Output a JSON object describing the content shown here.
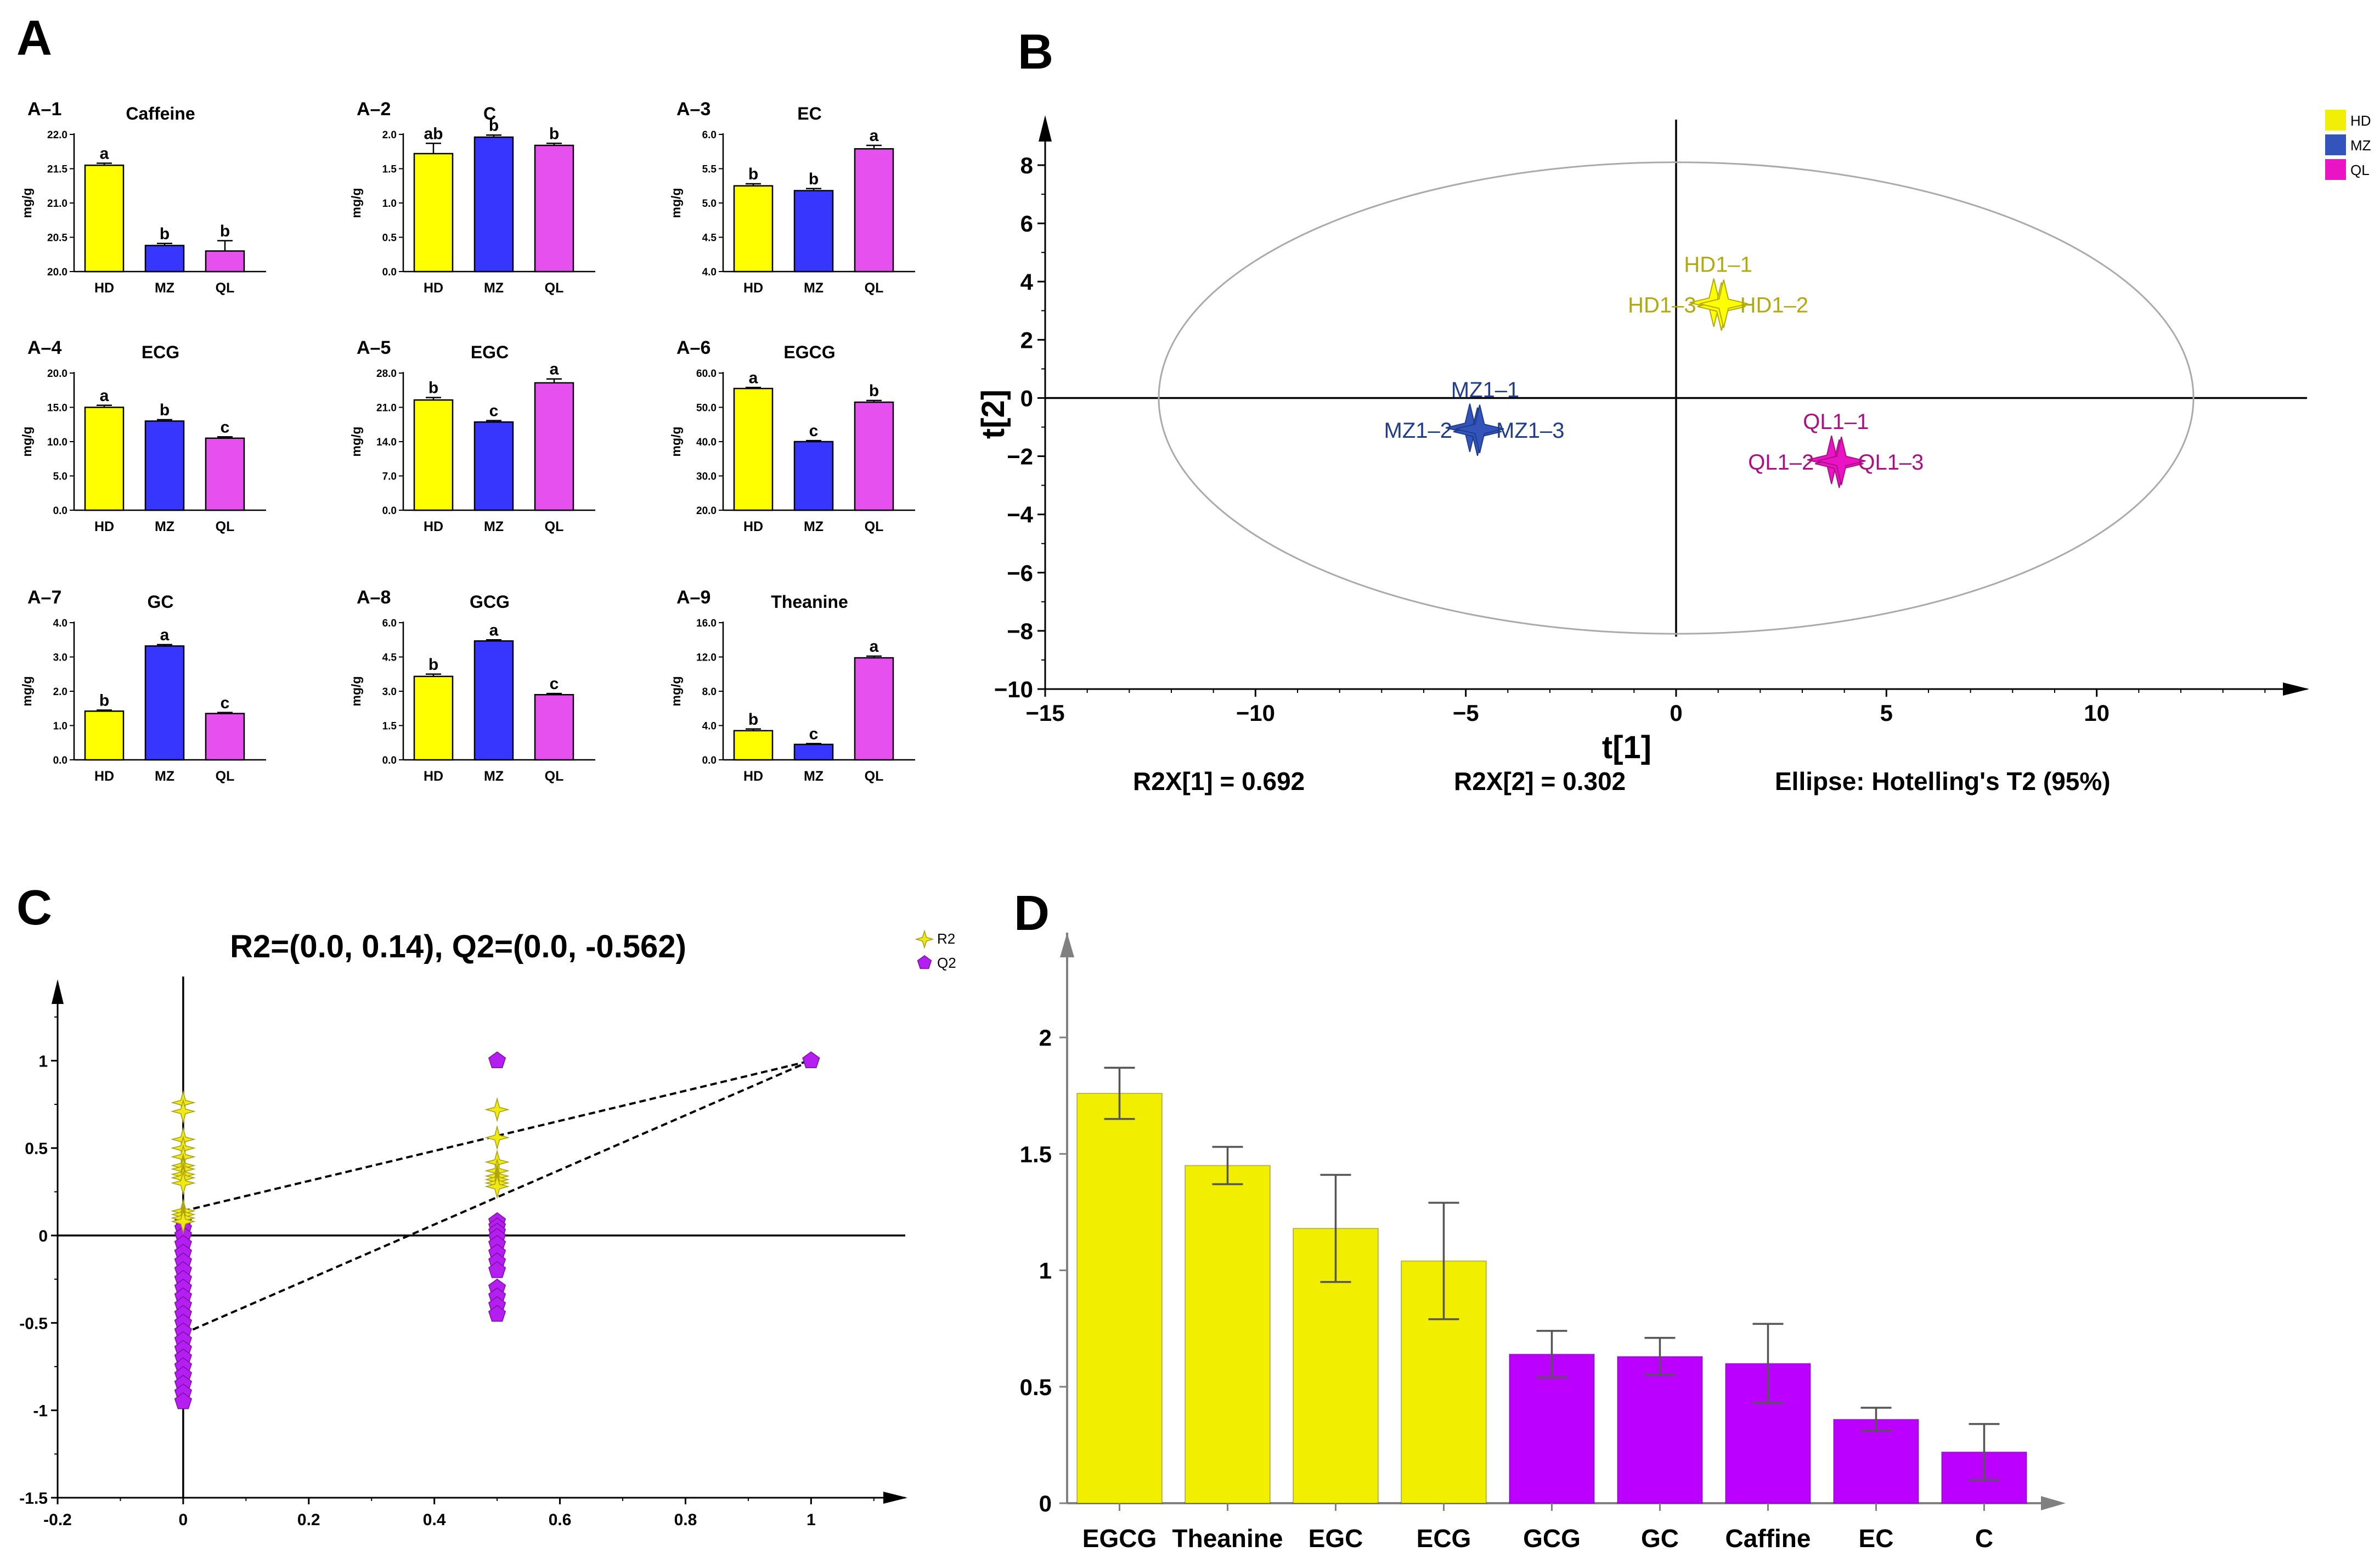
{
  "colors": {
    "HD": "#ffff00",
    "MZ": "#3636ff",
    "QL": "#e650ef",
    "hd_text": "#b3a90f",
    "mz_text": "#203d8a",
    "ql_text": "#a81083",
    "hd_legend": "#f0ef05",
    "mz_legend": "#3355bb",
    "ql_legend": "#ea14c4",
    "vip_yellow": "#f1ee00",
    "vip_purple": "#bb00ff",
    "r2_marker": "#f0ea14",
    "q2_marker": "#b51ef0"
  },
  "panel_labels": {
    "A": "A",
    "B": "B",
    "C": "C",
    "D": "D"
  },
  "chart_data": [
    {
      "id": "A-1",
      "type": "bar",
      "sublabel": "A–1",
      "title": "Caffeine",
      "ylabel": "mg/g",
      "categories": [
        "HD",
        "MZ",
        "QL"
      ],
      "values": [
        21.55,
        20.38,
        20.3
      ],
      "errors": [
        0.03,
        0.03,
        0.15
      ],
      "letters": [
        "a",
        "b",
        "b"
      ],
      "ylim": [
        20.0,
        22.0
      ],
      "ticks": [
        "20.0",
        "20.5",
        "21.0",
        "21.5",
        "22.0"
      ]
    },
    {
      "id": "A-2",
      "type": "bar",
      "sublabel": "A–2",
      "title": "C",
      "ylabel": "mg/g",
      "categories": [
        "HD",
        "MZ",
        "QL"
      ],
      "values": [
        1.72,
        1.96,
        1.84
      ],
      "errors": [
        0.15,
        0.03,
        0.03
      ],
      "letters": [
        "ab",
        "b",
        "b"
      ],
      "ylim": [
        0.0,
        2.0
      ],
      "ticks": [
        "0.0",
        "0.5",
        "1.0",
        "1.5",
        "2.0"
      ]
    },
    {
      "id": "A-3",
      "type": "bar",
      "sublabel": "A–3",
      "title": "EC",
      "ylabel": "mg/g",
      "categories": [
        "HD",
        "MZ",
        "QL"
      ],
      "values": [
        5.25,
        5.18,
        5.79
      ],
      "errors": [
        0.03,
        0.03,
        0.05
      ],
      "letters": [
        "b",
        "b",
        "a"
      ],
      "ylim": [
        4.0,
        6.0
      ],
      "ticks": [
        "4.0",
        "4.5",
        "5.0",
        "5.5",
        "6.0"
      ]
    },
    {
      "id": "A-4",
      "type": "bar",
      "sublabel": "A–4",
      "title": "ECG",
      "ylabel": "mg/g",
      "categories": [
        "HD",
        "MZ",
        "QL"
      ],
      "values": [
        15.0,
        13.0,
        10.5
      ],
      "errors": [
        0.3,
        0.2,
        0.2
      ],
      "letters": [
        "a",
        "b",
        "c"
      ],
      "ylim": [
        0.0,
        20.0
      ],
      "ticks": [
        "0.0",
        "5.0",
        "10.0",
        "15.0",
        "20.0"
      ]
    },
    {
      "id": "A-5",
      "type": "bar",
      "sublabel": "A–5",
      "title": "EGC",
      "ylabel": "mg/g",
      "categories": [
        "HD",
        "MZ",
        "QL"
      ],
      "values": [
        22.5,
        18.0,
        26.0
      ],
      "errors": [
        0.5,
        0.3,
        0.8
      ],
      "letters": [
        "b",
        "c",
        "a"
      ],
      "ylim": [
        0.0,
        28.0
      ],
      "ticks": [
        "0.0",
        "7.0",
        "14.0",
        "21.0",
        "28.0"
      ]
    },
    {
      "id": "A-6",
      "type": "bar",
      "sublabel": "A–6",
      "title": "EGCG",
      "ylabel": "mg/g",
      "categories": [
        "HD",
        "MZ",
        "QL"
      ],
      "values": [
        55.5,
        40.0,
        51.5
      ],
      "errors": [
        0.3,
        0.3,
        0.5
      ],
      "letters": [
        "a",
        "c",
        "b"
      ],
      "ylim": [
        20.0,
        60.0
      ],
      "ticks": [
        "20.0",
        "30.0",
        "40.0",
        "50.0",
        "60.0"
      ]
    },
    {
      "id": "A-7",
      "type": "bar",
      "sublabel": "A–7",
      "title": "GC",
      "ylabel": "mg/g",
      "categories": [
        "HD",
        "MZ",
        "QL"
      ],
      "values": [
        1.42,
        3.32,
        1.35
      ],
      "errors": [
        0.03,
        0.04,
        0.03
      ],
      "letters": [
        "b",
        "a",
        "c"
      ],
      "ylim": [
        0.0,
        4.0
      ],
      "ticks": [
        "0.0",
        "1.0",
        "2.0",
        "3.0",
        "4.0"
      ]
    },
    {
      "id": "A-8",
      "type": "bar",
      "sublabel": "A–8",
      "title": "GCG",
      "ylabel": "mg/g",
      "categories": [
        "HD",
        "MZ",
        "QL"
      ],
      "values": [
        3.65,
        5.2,
        2.85
      ],
      "errors": [
        0.1,
        0.05,
        0.05
      ],
      "letters": [
        "b",
        "a",
        "c"
      ],
      "ylim": [
        0.0,
        6.0
      ],
      "ticks": [
        "0.0",
        "1.5",
        "3.0",
        "4.5",
        "6.0"
      ]
    },
    {
      "id": "A-9",
      "type": "bar",
      "sublabel": "A–9",
      "title": "Theanine",
      "ylabel": "mg/g",
      "categories": [
        "HD",
        "MZ",
        "QL"
      ],
      "values": [
        3.4,
        1.8,
        11.9
      ],
      "errors": [
        0.2,
        0.1,
        0.2
      ],
      "letters": [
        "b",
        "c",
        "a"
      ],
      "ylim": [
        0.0,
        16.0
      ],
      "ticks": [
        "0.0",
        "4.0",
        "8.0",
        "12.0",
        "16.0"
      ]
    },
    {
      "id": "B",
      "type": "scatter",
      "xlabel": "t[1]",
      "ylabel": "t[2]",
      "xlim": [
        -15,
        15
      ],
      "ylim": [
        -10,
        9
      ],
      "xticks": [
        "−15",
        "−10",
        "−5",
        "0",
        "5",
        "10"
      ],
      "xtick_vals": [
        -15,
        -10,
        -5,
        0,
        5,
        10
      ],
      "yticks": [
        "8",
        "6",
        "4",
        "2",
        "0",
        "−2",
        "−4",
        "−6",
        "−8",
        "−10"
      ],
      "ytick_vals": [
        8,
        6,
        4,
        2,
        0,
        -2,
        -4,
        -6,
        -8,
        -10
      ],
      "ellipse": {
        "cx": 0,
        "cy": 0,
        "rx": 12.3,
        "ry": 8.1
      },
      "groups": [
        {
          "name": "HD",
          "x": 1.0,
          "y": 3.2,
          "labels": [
            "HD1–1",
            "HD1–3",
            "HD1–2"
          ]
        },
        {
          "name": "MZ",
          "x": -4.8,
          "y": -1.1,
          "labels": [
            "MZ1–1",
            "MZ1–2",
            "MZ1–3"
          ]
        },
        {
          "name": "QL",
          "x": 3.8,
          "y": -2.2,
          "labels": [
            "QL1–1",
            "QL1–2",
            "QL1–3"
          ]
        }
      ],
      "legend": [
        "HD",
        "MZ",
        "QL"
      ],
      "stats": [
        "R2X[1] = 0.692",
        "R2X[2] = 0.302",
        "Ellipse: Hotelling's T2 (95%)"
      ]
    },
    {
      "id": "C",
      "type": "scatter",
      "title": "R2=(0.0, 0.14), Q2=(0.0, -0.562)",
      "xlim": [
        -0.2,
        1.15
      ],
      "ylim": [
        -1.5,
        1.45
      ],
      "xticks": [
        "-0.2",
        "0",
        "0.2",
        "0.4",
        "0.6",
        "0.8",
        "1"
      ],
      "xtick_vals": [
        -0.2,
        0,
        0.2,
        0.4,
        0.6,
        0.8,
        1
      ],
      "yticks": [
        "1",
        "0.5",
        "0",
        "-0.5",
        "-1",
        "-1.5"
      ],
      "ytick_vals": [
        1,
        0.5,
        0,
        -0.5,
        -1,
        -1.5
      ],
      "legend": [
        "R2",
        "Q2"
      ],
      "r2_x0": [
        0.76,
        0.71,
        0.55,
        0.5,
        0.45,
        0.4,
        0.38,
        0.35,
        0.33,
        0.3,
        0.14,
        0.12,
        0.1,
        0.08
      ],
      "r2_x05": [
        0.72,
        0.56,
        0.42,
        0.37,
        0.34,
        0.32,
        0.3,
        0.28
      ],
      "q2_x0": [
        0.08,
        0.04,
        0.0,
        -0.05,
        -0.1,
        -0.15,
        -0.2,
        -0.25,
        -0.3,
        -0.35,
        -0.4,
        -0.45,
        -0.5,
        -0.55,
        -0.6,
        -0.65,
        -0.7,
        -0.75,
        -0.8,
        -0.85,
        -0.9,
        -0.95
      ],
      "q2_x05": [
        1.0,
        0.08,
        0.05,
        0.02,
        -0.01,
        -0.05,
        -0.1,
        -0.15,
        -0.2,
        -0.3,
        -0.35,
        -0.4,
        -0.45
      ],
      "endpoint": [
        1,
        1
      ],
      "r2_line": {
        "intercept": 0.14
      },
      "q2_line": {
        "intercept": -0.562
      }
    },
    {
      "id": "D",
      "type": "bar",
      "categories": [
        "EGCG",
        "Theanine",
        "EGC",
        "ECG",
        "GCG",
        "GC",
        "Caffine",
        "EC",
        "C"
      ],
      "values": [
        1.76,
        1.45,
        1.18,
        1.04,
        0.64,
        0.63,
        0.6,
        0.36,
        0.22
      ],
      "errors": [
        0.11,
        0.08,
        0.23,
        0.25,
        0.1,
        0.08,
        0.17,
        0.05,
        0.12
      ],
      "color_groups": [
        "yellow",
        "yellow",
        "yellow",
        "yellow",
        "purple",
        "purple",
        "purple",
        "purple",
        "purple"
      ],
      "ylim": [
        0,
        2.45
      ],
      "yticks": [
        "0",
        "0.5",
        "1",
        "1.5",
        "2"
      ],
      "ytick_vals": [
        0,
        0.5,
        1,
        1.5,
        2
      ]
    }
  ]
}
